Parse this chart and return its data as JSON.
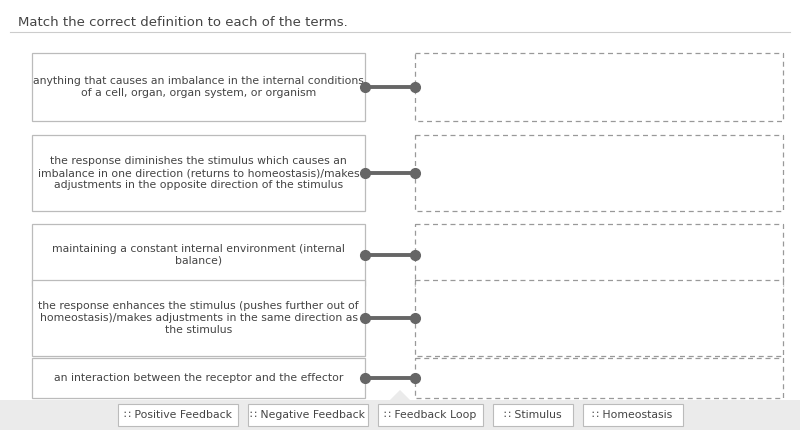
{
  "title": "Match the correct definition to each of the terms.",
  "background_color": "#ffffff",
  "legend_bg": "#ebebeb",
  "left_boxes": [
    "anything that causes an imbalance in the internal conditions\nof a cell, organ, organ system, or organism",
    "the response diminishes the stimulus which causes an\nimbalance in one direction (returns to homeostasis)/makes\nadjustments in the opposite direction of the stimulus",
    "maintaining a constant internal environment (internal\nbalance)",
    "the response enhances the stimulus (pushes further out of\nhomeostasis)/makes adjustments in the same direction as\nthe stimulus",
    "an interaction between the receptor and the effector"
  ],
  "left_box_edge": "#bbbbbb",
  "right_box_edge": "#999999",
  "connector_color": "#666666",
  "legend_items": [
    "∷ Positive Feedback",
    "∷ Negative Feedback",
    "∷ Feedback Loop",
    "∷ Stimulus",
    "∷ Homeostasis"
  ],
  "legend_box_edge": "#bbbbbb",
  "text_color": "#444444",
  "font_size": 7.8,
  "title_font_size": 9.5
}
